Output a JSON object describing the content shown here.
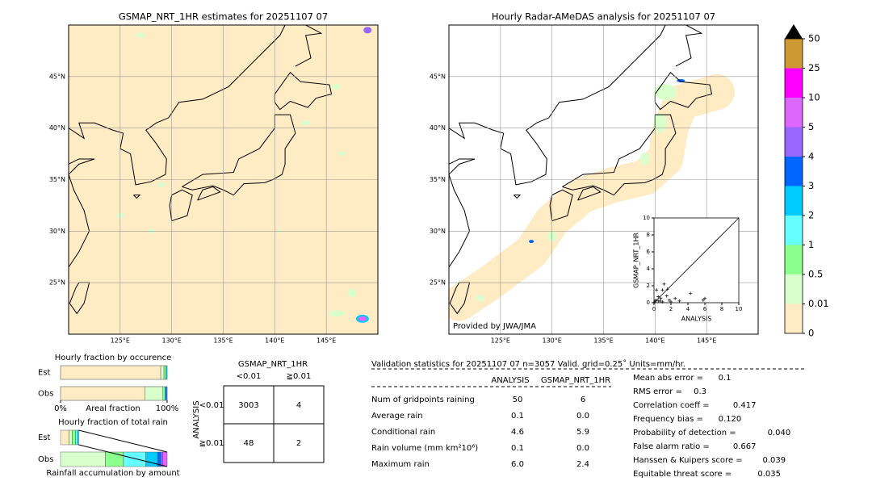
{
  "maps": [
    {
      "title": "GSMAP_NRT_1HR estimates for 20251107 07"
    },
    {
      "title": "Hourly Radar-AMeDAS analysis for 20251107 07",
      "credit": "Provided by JWA/JMA"
    }
  ],
  "map_axes": {
    "lonlim": [
      120,
      150
    ],
    "latlim": [
      20,
      50
    ],
    "lat_ticks": [
      {
        "value": 45,
        "label": "45°N"
      },
      {
        "value": 40,
        "label": "40°N"
      },
      {
        "value": 35,
        "label": "35°N"
      },
      {
        "value": 30,
        "label": "30°N"
      },
      {
        "value": 25,
        "label": "25°N"
      }
    ],
    "lon_ticks": [
      {
        "value": 125,
        "label": "125°E"
      },
      {
        "value": 130,
        "label": "130°E"
      },
      {
        "value": 135,
        "label": "135°E"
      },
      {
        "value": 140,
        "label": "140°E"
      },
      {
        "value": 145,
        "label": "145°E"
      }
    ]
  },
  "colorbar": {
    "ticks": [
      0,
      0.01,
      0.5,
      1,
      2,
      3,
      4,
      5,
      10,
      25,
      50
    ],
    "colors": [
      "#ffebc4",
      "#d9ffcc",
      "#8cff8c",
      "#66ffff",
      "#00ccff",
      "#0066ff",
      "#9966ff",
      "#dd66ff",
      "#ff00ff",
      "#cc9933"
    ],
    "extend_color": "#000000"
  },
  "chart_data": [
    {
      "type": "scatter",
      "xlabel": "ANALYSIS",
      "ylabel": "GSMAP_NRT_1HR",
      "xlim": [
        0,
        10
      ],
      "ylim": [
        0,
        10
      ],
      "xticks": [
        0,
        2,
        4,
        6,
        8,
        10
      ],
      "yticks": [
        0,
        2,
        4,
        6,
        8,
        10
      ],
      "color": "#000000",
      "x": [
        0.2,
        0.5,
        0.8,
        1.0,
        1.0,
        1.2,
        1.5,
        1.8,
        2.0,
        0.3,
        1.6,
        4.3,
        6.0,
        5.8,
        3.0,
        2.5,
        0.5,
        0.1,
        0.7
      ],
      "y": [
        0.3,
        0.2,
        0.5,
        0.1,
        1.5,
        2.2,
        0.8,
        0.3,
        0.1,
        1.5,
        1.6,
        1.1,
        0.5,
        0.3,
        0.2,
        0.5,
        0.7,
        0.1,
        0.2
      ]
    },
    {
      "type": "stacked_hbar",
      "title": "Hourly fraction by occurence",
      "xlabel": "Areal fraction",
      "categories": [
        "Est",
        "Obs"
      ],
      "xlim": [
        0,
        100
      ],
      "xticks": [
        {
          "value": 0,
          "label": "0%"
        },
        {
          "value": 100,
          "label": "100%"
        }
      ],
      "series": [
        {
          "color": "#ffebc4",
          "values": [
            94,
            79
          ]
        },
        {
          "color": "#d9ffcc",
          "values": [
            3,
            17
          ]
        },
        {
          "color": "#8cff8c",
          "values": [
            2,
            2
          ]
        },
        {
          "color": "#00ccff",
          "values": [
            1,
            1
          ]
        },
        {
          "color": "#0066ff",
          "values": [
            0,
            1
          ]
        }
      ]
    },
    {
      "type": "stacked_hbar",
      "title": "Hourly fraction of total rain",
      "xlabel": "Rainfall accumulation by amount",
      "categories": [
        "Est",
        "Obs"
      ],
      "xlim": [
        0,
        100
      ],
      "series": [
        {
          "color": "#ffebc4",
          "values": [
            8,
            0
          ]
        },
        {
          "color": "#d9ffcc",
          "values": [
            3,
            42
          ]
        },
        {
          "color": "#8cff8c",
          "values": [
            3,
            17
          ]
        },
        {
          "color": "#66ffff",
          "values": [
            2,
            21
          ]
        },
        {
          "color": "#00ccff",
          "values": [
            1,
            11
          ]
        },
        {
          "color": "#0066ff",
          "values": [
            0,
            3
          ]
        },
        {
          "color": "#9966ff",
          "values": [
            0,
            2
          ]
        },
        {
          "color": "#dd66ff",
          "values": [
            0,
            4
          ]
        }
      ]
    }
  ],
  "contingency": {
    "title": "GSMAP_NRT_1HR",
    "col_headers": [
      "<0.01",
      "≧0.01"
    ],
    "row_label": "ANALYSIS",
    "row_headers": [
      "<0.01",
      "≧0.01"
    ],
    "cells": [
      [
        "3003",
        "4"
      ],
      [
        "48",
        "2"
      ]
    ]
  },
  "validation": {
    "title": "Validation statistics for 20251107 07  n=3057 Valid. grid=0.25˚ Units=mm/hr.",
    "columns": [
      "ANALYSIS",
      "GSMAP_NRT_1HR"
    ],
    "rows": [
      {
        "label": "Num of gridpoints raining",
        "values": [
          "50",
          "6"
        ]
      },
      {
        "label": "Average rain",
        "values": [
          "0.1",
          "0.0"
        ]
      },
      {
        "label": "Conditional rain",
        "values": [
          "4.6",
          "5.9"
        ]
      },
      {
        "label": "Rain volume (mm km²10⁶)",
        "values": [
          "0.1",
          "0.0"
        ]
      },
      {
        "label": "Maximum rain",
        "values": [
          "6.0",
          "2.4"
        ]
      }
    ],
    "scores": [
      {
        "label": "Mean abs error =",
        "value": "0.1"
      },
      {
        "label": "RMS error =",
        "value": "0.3"
      },
      {
        "label": "Correlation coeff =",
        "value": "0.417"
      },
      {
        "label": "Frequency bias =",
        "value": "0.120"
      },
      {
        "label": "Probability of detection =",
        "value": "0.040"
      },
      {
        "label": "False alarm ratio =",
        "value": "0.667"
      },
      {
        "label": "Hanssen & Kuipers score =",
        "value": "0.039"
      },
      {
        "label": "Equitable threat score =",
        "value": "0.035"
      }
    ]
  }
}
